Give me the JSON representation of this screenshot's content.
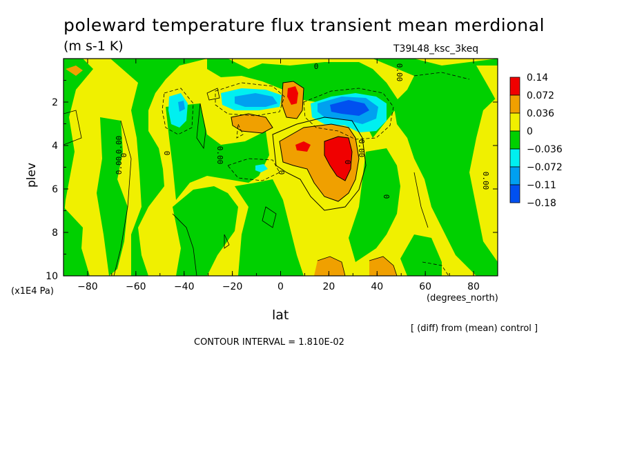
{
  "chart_data": {
    "type": "heatmap",
    "title": "poleward temperature flux transient mean merdional",
    "units": "(m s-1 K)",
    "run_id": "T39L48_ksc_3keq",
    "xlabel": "lat",
    "x_unit": "(degrees_north)",
    "ylabel": "plev",
    "y_unit": "(x1E4 Pa)",
    "x_ticks": [
      "-80",
      "-60",
      "-40",
      "-20",
      "0",
      "20",
      "40",
      "60",
      "80"
    ],
    "y_ticks": [
      "2",
      "4",
      "6",
      "8",
      "10"
    ],
    "xlim": [
      -90,
      90
    ],
    "ylim": [
      10,
      0
    ],
    "note": "[ (diff) from (mean) control ]",
    "contour_interval_text": "CONTOUR INTERVAL = 1.810E-02",
    "colorbar": {
      "levels": [
        "0.14",
        "0.072",
        "0.036",
        "0",
        "−0.036",
        "−0.072",
        "−0.11",
        "−0.18"
      ],
      "colors": [
        "#f00000",
        "#f0a000",
        "#f0f000",
        "#00d000",
        "#00f0f0",
        "#00a0f0",
        "#0050f0"
      ]
    },
    "regions": [
      {
        "sign": "negative",
        "class": 4,
        "lat": [
          -30,
          -25
        ],
        "plev": [
          1.5,
          2.5
        ]
      },
      {
        "sign": "positive",
        "class": 0,
        "lat": [
          20,
          30
        ],
        "plev": [
          3.8,
          5.4
        ]
      },
      {
        "sign": "positive",
        "class": 0,
        "lat": [
          3,
          8
        ],
        "plev": [
          1.5,
          2.4
        ]
      },
      {
        "sign": "negative",
        "class": 6,
        "lat": [
          17,
          42
        ],
        "plev": [
          1.8,
          3.0
        ]
      },
      {
        "sign": "negative",
        "class": 5,
        "lat": [
          -12,
          10
        ],
        "plev": [
          1.3,
          2.2
        ]
      }
    ],
    "contour_labels": [
      "0",
      "0.00",
      "0",
      "0.00",
      "0",
      "0.00",
      "0",
      "0.00",
      "0",
      "0.00",
      "0",
      "0.00"
    ]
  }
}
